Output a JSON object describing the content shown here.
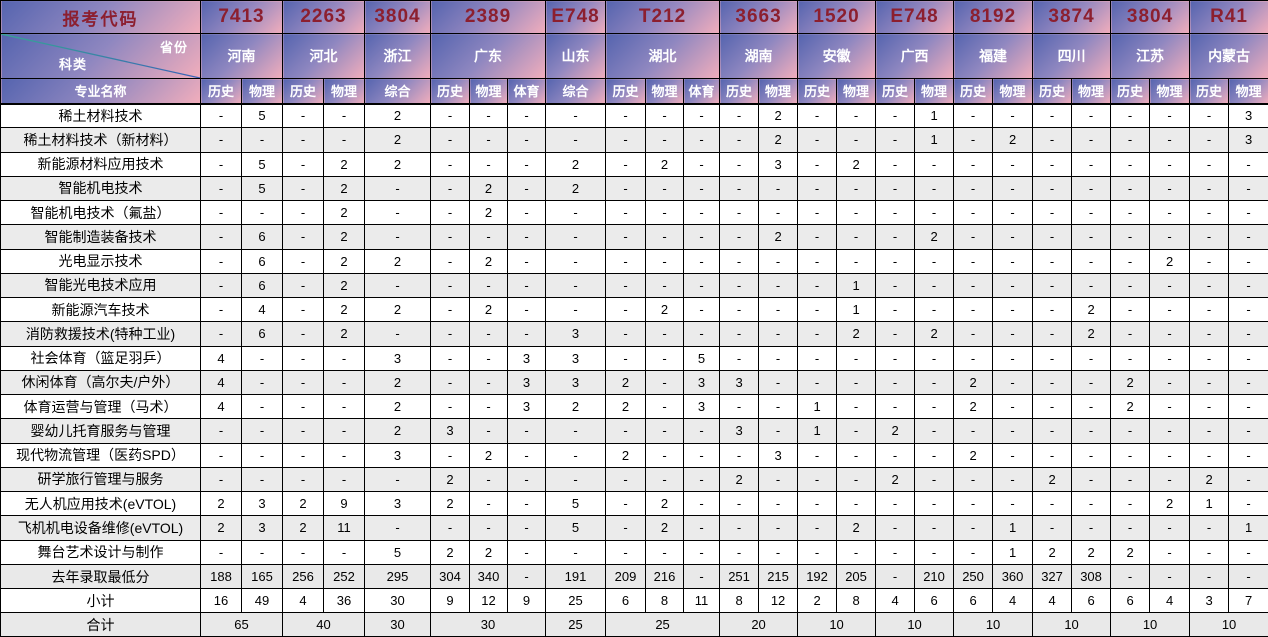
{
  "header": {
    "code_label": "报考代码",
    "province_label": "省份",
    "category_label": "科类",
    "major_label": "专业名称",
    "provinces": [
      {
        "code": "7413",
        "name": "河南",
        "subjects": [
          "历史",
          "物理"
        ]
      },
      {
        "code": "2263",
        "name": "河北",
        "subjects": [
          "历史",
          "物理"
        ]
      },
      {
        "code": "3804",
        "name": "浙江",
        "subjects": [
          "综合"
        ]
      },
      {
        "code": "2389",
        "name": "广东",
        "subjects": [
          "历史",
          "物理",
          "体育"
        ]
      },
      {
        "code": "E748",
        "name": "山东",
        "subjects": [
          "综合"
        ]
      },
      {
        "code": "T212",
        "name": "湖北",
        "subjects": [
          "历史",
          "物理",
          "体育"
        ]
      },
      {
        "code": "3663",
        "name": "湖南",
        "subjects": [
          "历史",
          "物理"
        ]
      },
      {
        "code": "1520",
        "name": "安徽",
        "subjects": [
          "历史",
          "物理"
        ]
      },
      {
        "code": "E748",
        "name": "广西",
        "subjects": [
          "历史",
          "物理"
        ]
      },
      {
        "code": "8192",
        "name": "福建",
        "subjects": [
          "历史",
          "物理"
        ]
      },
      {
        "code": "3874",
        "name": "四川",
        "subjects": [
          "历史",
          "物理"
        ]
      },
      {
        "code": "3804",
        "name": "江苏",
        "subjects": [
          "历史",
          "物理"
        ]
      },
      {
        "code": "R41",
        "name": "内蒙古",
        "subjects": [
          "历史",
          "物理"
        ]
      }
    ]
  },
  "body": {
    "rows": [
      {
        "major": "稀土材料技术",
        "values": [
          "-",
          "5",
          "-",
          "-",
          "2",
          "-",
          "-",
          "-",
          "-",
          "-",
          "-",
          "-",
          "-",
          "2",
          "-",
          "-",
          "-",
          "1",
          "-",
          "-",
          "-",
          "-",
          "-",
          "-",
          "-",
          "3"
        ]
      },
      {
        "major": "稀土材料技术（新材料）",
        "values": [
          "-",
          "-",
          "-",
          "-",
          "2",
          "-",
          "-",
          "-",
          "-",
          "-",
          "-",
          "-",
          "-",
          "2",
          "-",
          "-",
          "-",
          "1",
          "-",
          "2",
          "-",
          "-",
          "-",
          "-",
          "-",
          "3"
        ]
      },
      {
        "major": "新能源材料应用技术",
        "values": [
          "-",
          "5",
          "-",
          "2",
          "2",
          "-",
          "-",
          "-",
          "2",
          "-",
          "2",
          "-",
          "-",
          "3",
          "-",
          "2",
          "-",
          "-",
          "-",
          "-",
          "-",
          "-",
          "-",
          "-",
          "-",
          "-"
        ]
      },
      {
        "major": "智能机电技术",
        "values": [
          "-",
          "5",
          "-",
          "2",
          "-",
          "-",
          "2",
          "-",
          "2",
          "-",
          "-",
          "-",
          "-",
          "-",
          "-",
          "-",
          "-",
          "-",
          "-",
          "-",
          "-",
          "-",
          "-",
          "-",
          "-",
          "-"
        ]
      },
      {
        "major": "智能机电技术（氟盐）",
        "values": [
          "-",
          "-",
          "-",
          "2",
          "-",
          "-",
          "2",
          "-",
          "-",
          "-",
          "-",
          "-",
          "-",
          "-",
          "-",
          "-",
          "-",
          "-",
          "-",
          "-",
          "-",
          "-",
          "-",
          "-",
          "-",
          "-"
        ]
      },
      {
        "major": "智能制造装备技术",
        "values": [
          "-",
          "6",
          "-",
          "2",
          "-",
          "-",
          "-",
          "-",
          "-",
          "-",
          "-",
          "-",
          "-",
          "2",
          "-",
          "-",
          "-",
          "2",
          "-",
          "-",
          "-",
          "-",
          "-",
          "-",
          "-",
          "-"
        ]
      },
      {
        "major": "光电显示技术",
        "values": [
          "-",
          "6",
          "-",
          "2",
          "2",
          "-",
          "2",
          "-",
          "-",
          "-",
          "-",
          "-",
          "-",
          "-",
          "-",
          "-",
          "-",
          "-",
          "-",
          "-",
          "-",
          "-",
          "-",
          "2",
          "-",
          "-"
        ]
      },
      {
        "major": "智能光电技术应用",
        "values": [
          "-",
          "6",
          "-",
          "2",
          "-",
          "-",
          "-",
          "-",
          "-",
          "-",
          "-",
          "-",
          "-",
          "-",
          "-",
          "1",
          "-",
          "-",
          "-",
          "-",
          "-",
          "-",
          "-",
          "-",
          "-",
          "-"
        ]
      },
      {
        "major": "新能源汽车技术",
        "values": [
          "-",
          "4",
          "-",
          "2",
          "2",
          "-",
          "2",
          "-",
          "-",
          "-",
          "2",
          "-",
          "-",
          "-",
          "-",
          "1",
          "-",
          "-",
          "-",
          "-",
          "-",
          "2",
          "-",
          "-",
          "-",
          "-"
        ]
      },
      {
        "major": "消防救援技术(特种工业)",
        "values": [
          "-",
          "6",
          "-",
          "2",
          "-",
          "-",
          "-",
          "-",
          "3",
          "-",
          "-",
          "-",
          "-",
          "-",
          "-",
          "2",
          "-",
          "2",
          "-",
          "-",
          "-",
          "2",
          "-",
          "-",
          "-",
          "-"
        ]
      },
      {
        "major": "社会体育（篮足羽乒）",
        "values": [
          "4",
          "-",
          "-",
          "-",
          "3",
          "-",
          "-",
          "3",
          "3",
          "-",
          "-",
          "5",
          "-",
          "-",
          "-",
          "-",
          "-",
          "-",
          "-",
          "-",
          "-",
          "-",
          "-",
          "-",
          "-",
          "-"
        ]
      },
      {
        "major": "休闲体育（高尔夫/户外）",
        "values": [
          "4",
          "-",
          "-",
          "-",
          "2",
          "-",
          "-",
          "3",
          "3",
          "2",
          "-",
          "3",
          "3",
          "-",
          "-",
          "-",
          "-",
          "-",
          "2",
          "-",
          "-",
          "-",
          "2",
          "-",
          "-",
          "-"
        ]
      },
      {
        "major": "体育运营与管理（马术）",
        "values": [
          "4",
          "-",
          "-",
          "-",
          "2",
          "-",
          "-",
          "3",
          "2",
          "2",
          "-",
          "3",
          "-",
          "-",
          "1",
          "-",
          "-",
          "-",
          "2",
          "-",
          "-",
          "-",
          "2",
          "-",
          "-",
          "-"
        ]
      },
      {
        "major": "婴幼儿托育服务与管理",
        "values": [
          "-",
          "-",
          "-",
          "-",
          "2",
          "3",
          "-",
          "-",
          "-",
          "-",
          "-",
          "-",
          "3",
          "-",
          "1",
          "-",
          "2",
          "-",
          "-",
          "-",
          "-",
          "-",
          "-",
          "-",
          "-",
          "-"
        ]
      },
      {
        "major": "现代物流管理（医药SPD）",
        "values": [
          "-",
          "-",
          "-",
          "-",
          "3",
          "-",
          "2",
          "-",
          "-",
          "2",
          "-",
          "-",
          "-",
          "3",
          "-",
          "-",
          "-",
          "-",
          "2",
          "-",
          "-",
          "-",
          "-",
          "-",
          "-",
          "-"
        ]
      },
      {
        "major": "研学旅行管理与服务",
        "values": [
          "-",
          "-",
          "-",
          "-",
          "-",
          "2",
          "-",
          "-",
          "-",
          "-",
          "-",
          "-",
          "2",
          "-",
          "-",
          "-",
          "2",
          "-",
          "-",
          "-",
          "2",
          "-",
          "-",
          "-",
          "2",
          "-"
        ]
      },
      {
        "major": "无人机应用技术(eVTOL)",
        "values": [
          "2",
          "3",
          "2",
          "9",
          "3",
          "2",
          "-",
          "-",
          "5",
          "-",
          "2",
          "-",
          "-",
          "-",
          "-",
          "-",
          "-",
          "-",
          "-",
          "-",
          "-",
          "-",
          "-",
          "2",
          "1",
          "-"
        ]
      },
      {
        "major": "飞机机电设备维修(eVTOL)",
        "values": [
          "2",
          "3",
          "2",
          "11",
          "-",
          "-",
          "-",
          "-",
          "5",
          "-",
          "2",
          "-",
          "-",
          "-",
          "-",
          "2",
          "-",
          "-",
          "-",
          "1",
          "-",
          "-",
          "-",
          "-",
          "-",
          "1"
        ]
      },
      {
        "major": "舞台艺术设计与制作",
        "values": [
          "-",
          "-",
          "-",
          "-",
          "5",
          "2",
          "2",
          "-",
          "-",
          "-",
          "-",
          "-",
          "-",
          "-",
          "-",
          "-",
          "-",
          "-",
          "-",
          "1",
          "2",
          "2",
          "2",
          "-",
          "-",
          "-"
        ]
      }
    ]
  },
  "footer": {
    "min_score_label": "去年录取最低分",
    "min_scores": [
      "188",
      "165",
      "256",
      "252",
      "295",
      "304",
      "340",
      "-",
      "191",
      "209",
      "216",
      "-",
      "251",
      "215",
      "192",
      "205",
      "-",
      "210",
      "250",
      "360",
      "327",
      "308",
      "-",
      "-",
      "-",
      "-"
    ],
    "subtotal_label": "小计",
    "subtotals": [
      "16",
      "49",
      "4",
      "36",
      "30",
      "9",
      "12",
      "9",
      "25",
      "6",
      "8",
      "11",
      "8",
      "12",
      "2",
      "8",
      "4",
      "6",
      "6",
      "4",
      "4",
      "6",
      "6",
      "4",
      "3",
      "7"
    ],
    "total_label": "合计",
    "totals": [
      "65",
      "40",
      "30",
      "30",
      "25",
      "25",
      "20",
      "10",
      "10",
      "10",
      "10",
      "10",
      "10"
    ]
  },
  "colors": {
    "header_blue": "#5564af",
    "header_pink": "#f2aebc",
    "code_text": "#8c1f2f",
    "header_text": "#ffffff",
    "row_alt": "#ebebeb",
    "border": "#000000",
    "diagonal_teal": "#35a893",
    "diagonal_blue": "#3b62b8"
  }
}
